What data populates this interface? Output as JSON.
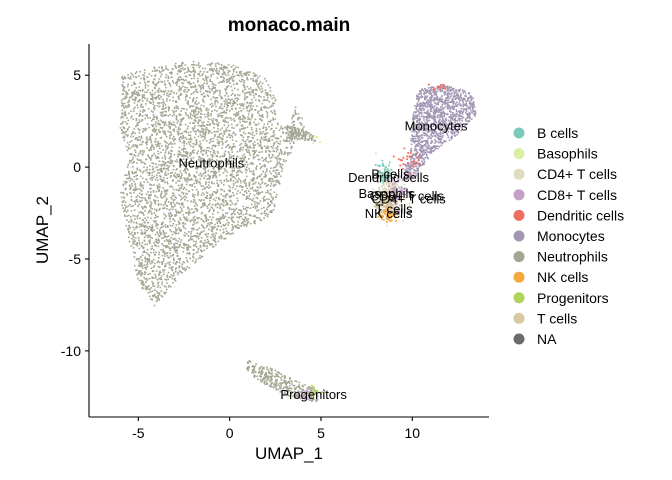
{
  "chart_data": {
    "type": "scatter",
    "title": "monaco.main",
    "xlabel": "UMAP_1",
    "ylabel": "UMAP_2",
    "xlim": [
      -7.7,
      14.2
    ],
    "ylim": [
      -13.6,
      6.7
    ],
    "x_ticks": [
      -5,
      0,
      5,
      10
    ],
    "y_ticks": [
      -10,
      -5,
      0,
      5
    ],
    "grid": false,
    "legend_position": "right",
    "legend": [
      {
        "name": "B cells",
        "color": "#7DCABD"
      },
      {
        "name": "Basophils",
        "color": "#D9F0A3"
      },
      {
        "name": "CD4+ T cells",
        "color": "#E0DCC0"
      },
      {
        "name": "CD8+ T cells",
        "color": "#C4A0C9"
      },
      {
        "name": "Dendritic cells",
        "color": "#EE6E62"
      },
      {
        "name": "Monocytes",
        "color": "#A296B4"
      },
      {
        "name": "Neutrophils",
        "color": "#A3A692"
      },
      {
        "name": "NK cells",
        "color": "#F4A940"
      },
      {
        "name": "Progenitors",
        "color": "#B0D45A"
      },
      {
        "name": "T cells",
        "color": "#D9C8A2"
      },
      {
        "name": "NA",
        "color": "#6B6B6B"
      }
    ],
    "cluster_labels": [
      {
        "text": "Neutrophils",
        "x": -1.0,
        "y": 0.2
      },
      {
        "text": "Monocytes",
        "x": 11.3,
        "y": 2.2
      },
      {
        "text": "Progenitors",
        "x": 4.6,
        "y": -12.4
      },
      {
        "text": "Dendritic cells",
        "x": 8.7,
        "y": -0.6
      },
      {
        "text": "B cells",
        "x": 8.8,
        "y": -0.4
      },
      {
        "text": "Basophils",
        "x": 8.6,
        "y": -1.45
      },
      {
        "text": "CD8+ T cells",
        "x": 9.7,
        "y": -1.6
      },
      {
        "text": "CD4+ T cells",
        "x": 9.8,
        "y": -1.75
      },
      {
        "text": "T cells",
        "x": 9.0,
        "y": -2.3
      },
      {
        "text": "NK cells",
        "x": 8.7,
        "y": -2.55
      }
    ]
  }
}
